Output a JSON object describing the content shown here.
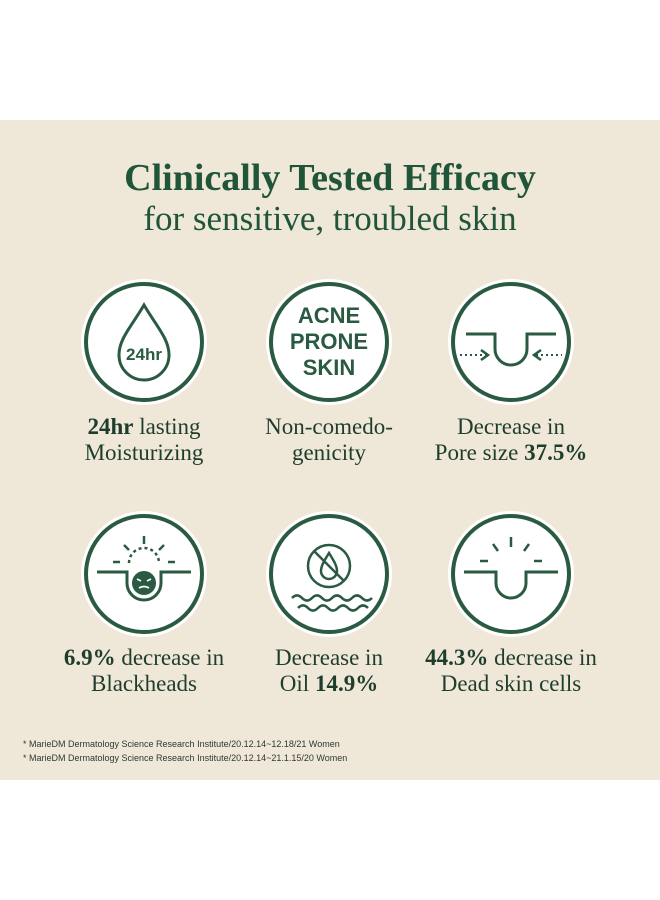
{
  "heading": {
    "title": "Clinically Tested Efficacy",
    "subtitle": "for sensitive, troubled skin"
  },
  "colors": {
    "panel": "#efe7d8",
    "ink_green": "#20553a",
    "ring_green": "#2b5a43",
    "badge_fill": "#ffffff"
  },
  "badges": [
    {
      "icon": "droplet-24hr-icon",
      "icon_text": "24hr",
      "caption_bold": "24hr",
      "caption_rest": " lasting",
      "caption_line2": "Moisturizing",
      "caption_line2_bold": ""
    },
    {
      "icon": "acne-prone-skin-icon",
      "icon_text_lines": [
        "ACNE",
        "PRONE",
        "SKIN"
      ],
      "caption_line1": "Non-comedo-",
      "caption_line2": "genicity"
    },
    {
      "icon": "pore-shrink-icon",
      "caption_line1": "Decrease in",
      "caption_line2": "Pore size ",
      "caption_line2_bold": "37.5%"
    },
    {
      "icon": "blackhead-icon",
      "caption_bold": "6.9%",
      "caption_rest": " decrease in",
      "caption_line2": "Blackheads"
    },
    {
      "icon": "no-oil-icon",
      "caption_line1": "Decrease in",
      "caption_line2": "Oil ",
      "caption_line2_bold": "14.9%"
    },
    {
      "icon": "dead-skin-icon",
      "caption_bold": "44.3%",
      "caption_rest": " decrease in",
      "caption_line2": "Dead skin cells"
    }
  ],
  "footnotes": [
    "* MarieDM Dermatology Science Research Institute/20.12.14~12.18/21 Women",
    "* MarieDM Dermatology Science Research Institute/20.12.14~21.1.15/20 Women"
  ]
}
